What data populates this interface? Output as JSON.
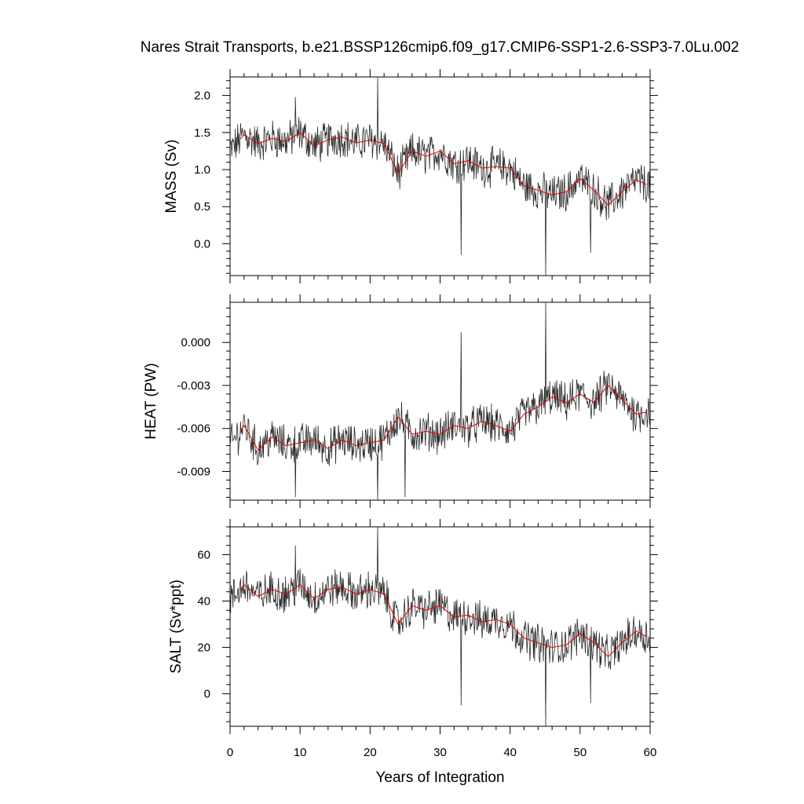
{
  "title": "Nares Strait Transports, b.e21.BSSP126cmip6.f09_g17.CMIP6-SSP1-2.6-SSP3-7.0Lu.002",
  "colors": {
    "raw": "#2a2a2a",
    "smooth": "#e00000",
    "frame": "#000000"
  },
  "chart_data": [
    {
      "type": "line",
      "name": "mass",
      "ylabel": "MASS (Sv)",
      "xlabel": "",
      "xlim": [
        0,
        60
      ],
      "ylim": [
        -0.43,
        2.25
      ],
      "yticks": [
        0.0,
        0.5,
        1.0,
        1.5,
        2.0
      ],
      "ytick_labels": [
        "0.0",
        "0.5",
        "1.0",
        "1.5",
        "2.0"
      ],
      "smooth_x": [
        0,
        2,
        4,
        6,
        8,
        10,
        12,
        14,
        16,
        18,
        20,
        22,
        24,
        26,
        28,
        30,
        32,
        34,
        36,
        38,
        40,
        42,
        44,
        46,
        48,
        50,
        52,
        54,
        56,
        58,
        60
      ],
      "smooth_y": [
        1.25,
        1.47,
        1.35,
        1.42,
        1.38,
        1.5,
        1.32,
        1.4,
        1.44,
        1.36,
        1.4,
        1.35,
        0.95,
        1.25,
        1.18,
        1.25,
        1.08,
        1.12,
        1.02,
        1.04,
        1.02,
        0.78,
        0.72,
        0.66,
        0.7,
        0.88,
        0.72,
        0.52,
        0.7,
        0.86,
        0.78
      ],
      "raw_extremes": [
        {
          "x": 21.1,
          "y": 2.25
        },
        {
          "x": 9.3,
          "y": 1.98
        },
        {
          "x": 33.0,
          "y": -0.15
        },
        {
          "x": 45.1,
          "y": -0.43
        },
        {
          "x": 51.5,
          "y": -0.12
        }
      ]
    },
    {
      "type": "line",
      "name": "heat",
      "ylabel": "HEAT (PW)",
      "xlabel": "",
      "xlim": [
        0,
        60
      ],
      "ylim": [
        -0.011,
        0.0028
      ],
      "yticks": [
        -0.009,
        -0.006,
        -0.003,
        0.0
      ],
      "ytick_labels": [
        "-0.009",
        "-0.006",
        "-0.003",
        "0.000"
      ],
      "smooth_x": [
        0,
        2,
        4,
        6,
        8,
        10,
        12,
        14,
        16,
        18,
        20,
        22,
        24,
        26,
        28,
        30,
        32,
        34,
        36,
        38,
        40,
        42,
        44,
        46,
        48,
        50,
        52,
        54,
        56,
        58,
        60
      ],
      "smooth_y": [
        -0.0072,
        -0.0058,
        -0.0075,
        -0.0066,
        -0.0072,
        -0.007,
        -0.0068,
        -0.0074,
        -0.0068,
        -0.0072,
        -0.007,
        -0.0068,
        -0.0052,
        -0.0064,
        -0.0062,
        -0.0064,
        -0.0058,
        -0.006,
        -0.0055,
        -0.0058,
        -0.0062,
        -0.005,
        -0.0045,
        -0.0038,
        -0.0042,
        -0.0036,
        -0.0042,
        -0.003,
        -0.004,
        -0.005,
        -0.0048
      ],
      "raw_extremes": [
        {
          "x": 45.1,
          "y": 0.0028
        },
        {
          "x": 33.0,
          "y": 0.0007
        },
        {
          "x": 9.3,
          "y": -0.0108
        },
        {
          "x": 21.1,
          "y": -0.011
        },
        {
          "x": 25.0,
          "y": -0.0108
        }
      ]
    },
    {
      "type": "line",
      "name": "salt",
      "ylabel": "SALT (Sv*ppt)",
      "xlabel": "Years of Integration",
      "xlim": [
        0,
        60
      ],
      "ylim": [
        -14,
        72
      ],
      "yticks": [
        0,
        20,
        40,
        60
      ],
      "ytick_labels": [
        "0",
        "20",
        "40",
        "60"
      ],
      "xticks": [
        0,
        10,
        20,
        30,
        40,
        50,
        60
      ],
      "xtick_labels": [
        "0",
        "10",
        "20",
        "30",
        "40",
        "50",
        "60"
      ],
      "smooth_x": [
        0,
        2,
        4,
        6,
        8,
        10,
        12,
        14,
        16,
        18,
        20,
        22,
        24,
        26,
        28,
        30,
        32,
        34,
        36,
        38,
        40,
        42,
        44,
        46,
        48,
        50,
        52,
        54,
        56,
        58,
        60
      ],
      "smooth_y": [
        40,
        47,
        42,
        45,
        43,
        47,
        41,
        45,
        46,
        43,
        45,
        43,
        30,
        38,
        36,
        38,
        33,
        34,
        31,
        32,
        30,
        24,
        22,
        20,
        21,
        26,
        22,
        16,
        22,
        27,
        24
      ],
      "raw_extremes": [
        {
          "x": 21.1,
          "y": 72
        },
        {
          "x": 9.3,
          "y": 64
        },
        {
          "x": 33.0,
          "y": -5
        },
        {
          "x": 45.1,
          "y": -14
        },
        {
          "x": 51.5,
          "y": -4
        }
      ]
    }
  ]
}
